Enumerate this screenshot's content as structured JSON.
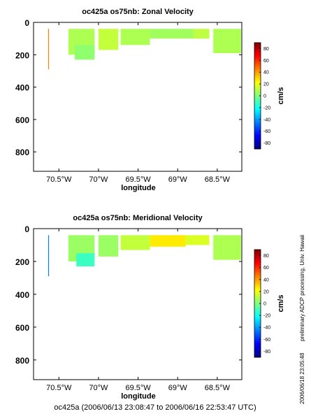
{
  "footer": "oc425a (2006/06/13 23:08:47 to 2006/06/16 22:53:47 UTC)",
  "side_note_processing": "preliminary ADCP processing,   Univ. Hawaii",
  "side_note_timestamp": "2006/06/18 23:05:48",
  "colorbar": {
    "label": "cm/s",
    "ticks": [
      80,
      60,
      40,
      20,
      0,
      -20,
      -40,
      -60,
      -80
    ],
    "range": [
      -90,
      90
    ],
    "colormap": [
      "#00007f",
      "#0000ff",
      "#007fff",
      "#00ffff",
      "#7fff7f",
      "#ffff00",
      "#ff7f00",
      "#ff0000",
      "#7f0000"
    ]
  },
  "chart_data": [
    {
      "type": "heatmap",
      "title": "oc425a os75nb: Zonal Velocity",
      "xlabel": "longitude",
      "ylabel": "",
      "x_tick_labels": [
        "70.5°W",
        "70°W",
        "69.5°W",
        "69°W",
        "68.5°W"
      ],
      "x_tick_values": [
        -70.5,
        -70.0,
        -69.5,
        -69.0,
        -68.5
      ],
      "xlim": [
        -70.82,
        -68.19
      ],
      "y_tick_labels": [
        "0",
        "200",
        "400",
        "600",
        "800"
      ],
      "y_tick_values": [
        0,
        200,
        400,
        600,
        800
      ],
      "ylim": [
        920,
        0
      ],
      "units": "cm/s",
      "sections": [
        {
          "lon": [
            -70.63,
            -70.63
          ],
          "depth": [
            40,
            290
          ],
          "value": 45,
          "thin": true
        },
        {
          "lon": [
            -70.38,
            -70.05
          ],
          "depth": [
            40,
            200
          ],
          "value": 8
        },
        {
          "lon": [
            -70.3,
            -70.05
          ],
          "depth": [
            140,
            230
          ],
          "value": 3
        },
        {
          "lon": [
            -70.0,
            -69.75
          ],
          "depth": [
            40,
            170
          ],
          "value": 12
        },
        {
          "lon": [
            -69.72,
            -69.35
          ],
          "depth": [
            40,
            140
          ],
          "value": 8
        },
        {
          "lon": [
            -69.35,
            -68.8
          ],
          "depth": [
            40,
            100
          ],
          "value": 6
        },
        {
          "lon": [
            -68.8,
            -68.6
          ],
          "depth": [
            40,
            100
          ],
          "value": 11
        },
        {
          "lon": [
            -68.55,
            -68.2
          ],
          "depth": [
            40,
            190
          ],
          "value": 8
        }
      ]
    },
    {
      "type": "heatmap",
      "title": "oc425a os75nb: Meridional Velocity",
      "xlabel": "longitude",
      "ylabel": "",
      "x_tick_labels": [
        "70.5°W",
        "70°W",
        "69.5°W",
        "69°W",
        "68.5°W"
      ],
      "x_tick_values": [
        -70.5,
        -70.0,
        -69.5,
        -69.0,
        -68.5
      ],
      "xlim": [
        -70.82,
        -68.19
      ],
      "y_tick_labels": [
        "0",
        "200",
        "400",
        "600",
        "800"
      ],
      "y_tick_values": [
        0,
        200,
        400,
        600,
        800
      ],
      "ylim": [
        920,
        0
      ],
      "units": "cm/s",
      "sections": [
        {
          "lon": [
            -70.63,
            -70.63
          ],
          "depth": [
            40,
            290
          ],
          "value": -45,
          "thin": true
        },
        {
          "lon": [
            -70.38,
            -70.05
          ],
          "depth": [
            40,
            200
          ],
          "value": 5
        },
        {
          "lon": [
            -70.28,
            -70.05
          ],
          "depth": [
            150,
            230
          ],
          "value": -12
        },
        {
          "lon": [
            -70.0,
            -69.75
          ],
          "depth": [
            40,
            170
          ],
          "value": 5
        },
        {
          "lon": [
            -69.72,
            -69.35
          ],
          "depth": [
            40,
            130
          ],
          "value": 12
        },
        {
          "lon": [
            -69.35,
            -68.9
          ],
          "depth": [
            40,
            110
          ],
          "value": 26
        },
        {
          "lon": [
            -68.9,
            -68.6
          ],
          "depth": [
            40,
            100
          ],
          "value": 16
        },
        {
          "lon": [
            -68.55,
            -68.2
          ],
          "depth": [
            40,
            190
          ],
          "value": 8
        }
      ]
    }
  ]
}
